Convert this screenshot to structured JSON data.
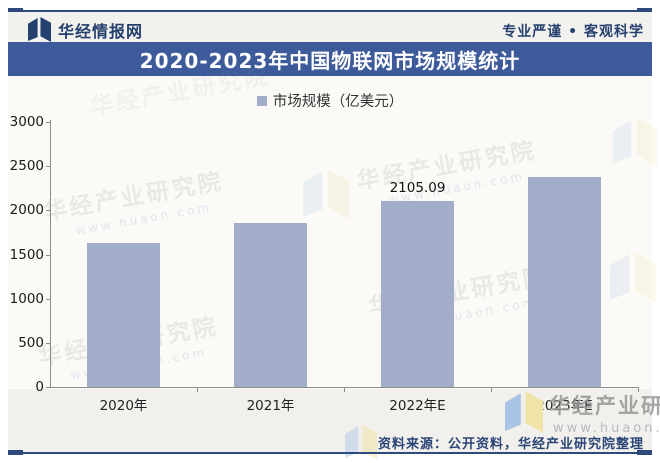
{
  "header": {
    "brand": "华经情报网",
    "slogan": "专业严谨 • 客观科学"
  },
  "title": "2020-2023年中国物联网市场规模统计",
  "legend": {
    "label": "市场规模（亿美元）",
    "swatch_color": "#a2aec9"
  },
  "chart_data": {
    "type": "bar",
    "title": "2020-2023年中国物联网市场规模统计",
    "legend": "市场规模（亿美元）",
    "categories": [
      "2020年",
      "2021年",
      "2022年E",
      "2023年E"
    ],
    "values": [
      1633,
      1860,
      2105.09,
      2380
    ],
    "data_labels": [
      "",
      "",
      "2105.09",
      ""
    ],
    "ylim": [
      0,
      3000
    ],
    "yticks": [
      0,
      500,
      1000,
      1500,
      2000,
      2500,
      3000
    ],
    "xlabel": "",
    "ylabel": "",
    "grid": false,
    "legend_position": "top-center",
    "bar_color": "#a2aec9"
  },
  "watermarks": {
    "diagonal_text": "华经产业研究院",
    "diagonal_url": "www.huaon.com",
    "corner_text": "华经产业研究院",
    "corner_url": "www.huaon.com"
  },
  "footer": {
    "source": "资料来源：公开资料，华经产业研究院整理"
  },
  "icons": {
    "brand_logo": "huaon-open-book-icon",
    "watermark_logo": "huaon-open-book-icon"
  },
  "colors": {
    "banner_bg": "#3d5a9b",
    "bar": "#a2aec9",
    "frame_line": "#2e4a7d",
    "brand_text": "#24406e",
    "source_text": "#2b4576",
    "axis": "#8c8c8c",
    "wm_logo_blue": "#a9c3e4",
    "wm_logo_yellow": "#efe3a6"
  }
}
